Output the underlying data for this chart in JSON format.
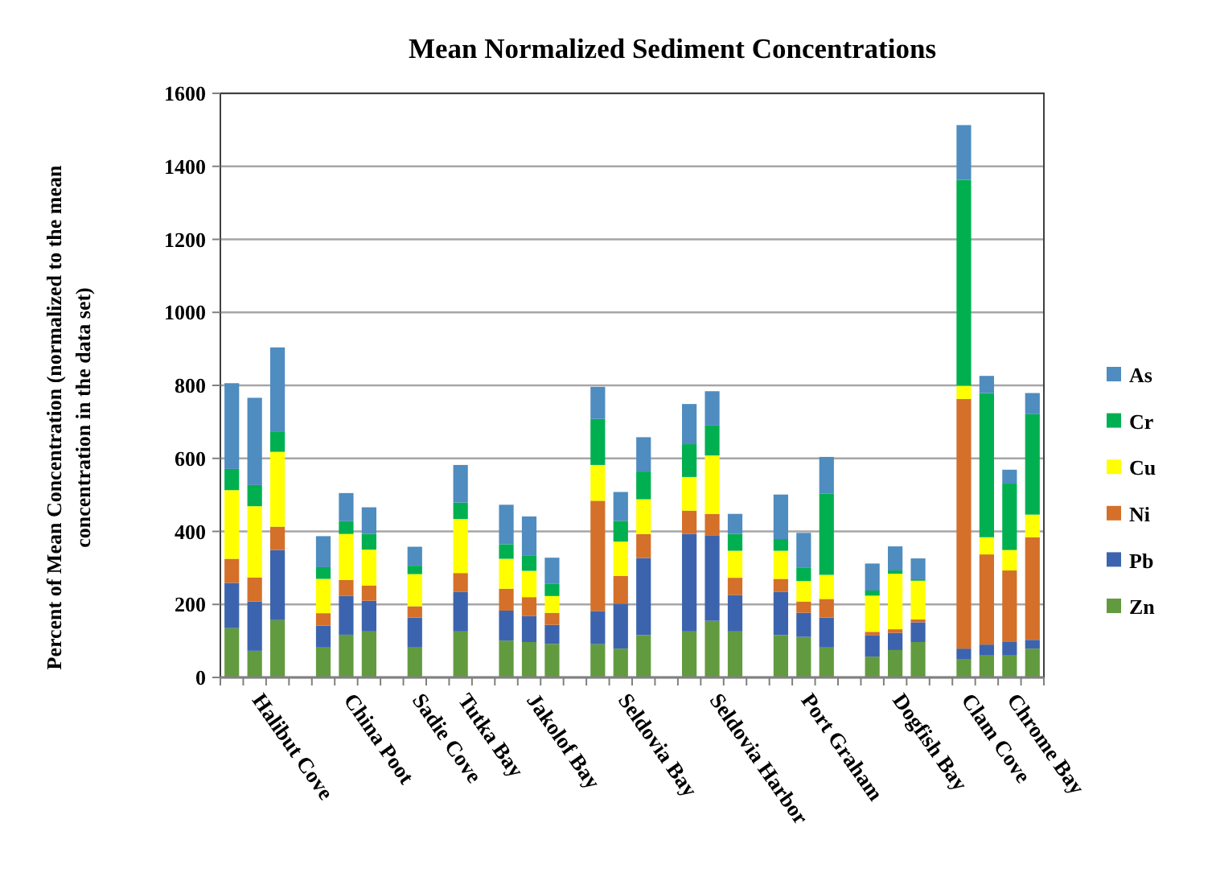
{
  "chart_data": {
    "type": "bar",
    "stacked": true,
    "title": "Mean Normalized Sediment Concentrations",
    "ylabel": "Percent of Mean Concentration  (normalized  to the mean\nconcentration in the data set)",
    "categories": [
      null,
      "Halibut Cove",
      null,
      null,
      null,
      "China Poot",
      null,
      null,
      "Sadie Cove",
      null,
      "Tutka Bay",
      null,
      null,
      "Jakolof Bay",
      null,
      null,
      null,
      "Seldovia Bay",
      null,
      null,
      null,
      "Seldovia Harbor",
      null,
      null,
      null,
      "Port Graham",
      null,
      null,
      null,
      "Dogfish Bay",
      null,
      null,
      "Clam Cove",
      null,
      "Chrome Bay",
      null
    ],
    "ylim": [
      0,
      1600
    ],
    "yticks": [
      0,
      200,
      400,
      600,
      800,
      1000,
      1200,
      1400,
      1600
    ],
    "grid": "y",
    "legend": "right",
    "series": [
      {
        "name": "Zn",
        "color": "#629b3f",
        "values": [
          135,
          73,
          157,
          null,
          82,
          117,
          126,
          null,
          82,
          null,
          126,
          null,
          101,
          97,
          92,
          null,
          91,
          79,
          116,
          null,
          126,
          155,
          126,
          null,
          116,
          111,
          82,
          null,
          57,
          75,
          97,
          null,
          49,
          60,
          60,
          79
        ]
      },
      {
        "name": "Pb",
        "color": "#3c64ae",
        "values": [
          124,
          135,
          192,
          null,
          60,
          106,
          84,
          null,
          82,
          null,
          108,
          null,
          82,
          71,
          52,
          null,
          91,
          123,
          211,
          null,
          267,
          233,
          100,
          null,
          118,
          66,
          82,
          null,
          59,
          47,
          54,
          null,
          30,
          30,
          37,
          24
        ]
      },
      {
        "name": "Ni",
        "color": "#d4702a",
        "values": [
          66,
          66,
          64,
          null,
          34,
          44,
          42,
          null,
          31,
          null,
          52,
          null,
          60,
          52,
          33,
          null,
          302,
          76,
          66,
          null,
          64,
          60,
          47,
          null,
          36,
          31,
          51,
          null,
          9,
          10,
          8,
          null,
          684,
          247,
          196,
          281
        ]
      },
      {
        "name": "Cu",
        "color": "#ffff00",
        "values": [
          188,
          195,
          205,
          null,
          94,
          126,
          98,
          null,
          88,
          null,
          148,
          null,
          82,
          72,
          46,
          null,
          98,
          94,
          95,
          null,
          92,
          160,
          74,
          null,
          77,
          56,
          66,
          null,
          99,
          152,
          106,
          null,
          36,
          47,
          56,
          62
        ]
      },
      {
        "name": "Cr",
        "color": "#00b050",
        "values": [
          58,
          58,
          56,
          null,
          32,
          35,
          43,
          null,
          23,
          null,
          45,
          null,
          40,
          41,
          33,
          null,
          126,
          57,
          76,
          null,
          90,
          82,
          46,
          null,
          32,
          36,
          222,
          null,
          14,
          9,
          4,
          null,
          564,
          395,
          182,
          275
        ]
      },
      {
        "name": "As",
        "color": "#4f8cc0",
        "values": [
          235,
          239,
          230,
          null,
          85,
          77,
          73,
          null,
          52,
          null,
          103,
          null,
          108,
          108,
          72,
          null,
          88,
          79,
          94,
          null,
          110,
          94,
          55,
          null,
          122,
          96,
          101,
          null,
          74,
          66,
          57,
          null,
          150,
          47,
          38,
          58
        ]
      }
    ]
  }
}
